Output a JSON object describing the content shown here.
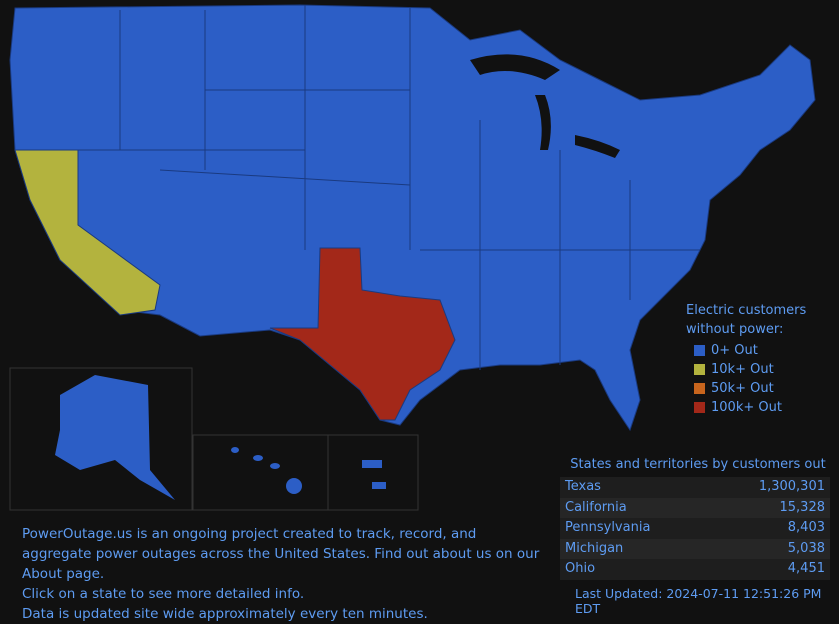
{
  "legend": {
    "title": "Electric customers without power:",
    "items": [
      {
        "label": "0+ Out",
        "color": "#2c5ec6"
      },
      {
        "label": "10k+ Out",
        "color": "#b3b33e"
      },
      {
        "label": "50k+ Out",
        "color": "#c8651d"
      },
      {
        "label": "100k+ Out",
        "color": "#a32819"
      }
    ]
  },
  "table": {
    "title": "States and territories by customers out",
    "rows": [
      [
        "Texas",
        "1,300,301"
      ],
      [
        "California",
        "15,328"
      ],
      [
        "Pennsylvania",
        "8,403"
      ],
      [
        "Michigan",
        "5,038"
      ],
      [
        "Ohio",
        "4,451"
      ]
    ]
  },
  "last_updated": "Last Updated: 2024-07-11 12:51:26 PM EDT",
  "info": {
    "text1": "PowerOutage.us is an ongoing project created to track, record, and aggregate power outages across the United States. Find out about us on our",
    "link": "About",
    "text2": "page.",
    "line3": "Click on a state to see more detailed info.",
    "line4": "Data is updated site wide approximately every ten minutes."
  }
}
